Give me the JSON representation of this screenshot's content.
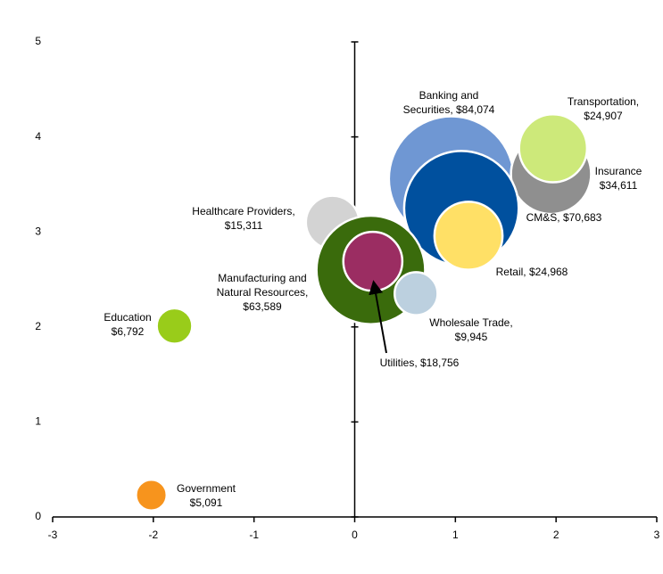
{
  "chart_data": {
    "type": "bubble",
    "x": [
      0.96,
      1.95,
      1.97,
      1.06,
      1.13,
      -0.22,
      0.16,
      0.18,
      0.61,
      -1.79,
      -2.02
    ],
    "values": [
      3.56,
      3.61,
      3.88,
      3.25,
      2.96,
      3.1,
      2.6,
      2.69,
      2.35,
      2.01,
      0.23
    ],
    "sizes": [
      84074,
      34611,
      24907,
      70683,
      24968,
      15311,
      63589,
      18756,
      9945,
      6792,
      5091
    ],
    "labels": [
      [
        "Banking and",
        "Securities, $84,074"
      ],
      [
        "Insurance",
        "$34,611"
      ],
      [
        "Transportation,",
        "$24,907"
      ],
      [
        "CM&S, $70,683"
      ],
      [
        "Retail, $24,968"
      ],
      [
        "Healthcare Providers,",
        "$15,311"
      ],
      [
        "Manufacturing and",
        "Natural Resources,",
        "$63,589"
      ],
      [
        "Utilities, $18,756"
      ],
      [
        "Wholesale Trade,",
        "$9,945"
      ],
      [
        "Education",
        "$6,792"
      ],
      [
        "Government",
        "$5,091"
      ]
    ],
    "colors": [
      "#6f97d3",
      "#8f8f8f",
      "#cde97a",
      "#00509e",
      "#ffe066",
      "#d3d3d3",
      "#3a6b0c",
      "#9b2d62",
      "#bcd0df",
      "#99cc1a",
      "#f7941d"
    ],
    "xlim": [
      -3,
      3
    ],
    "ylim": [
      0,
      5
    ],
    "xticks": [
      -3,
      -2,
      -1,
      0,
      1,
      2,
      3
    ],
    "yticks": [
      0,
      1,
      2,
      3,
      4,
      5
    ]
  }
}
